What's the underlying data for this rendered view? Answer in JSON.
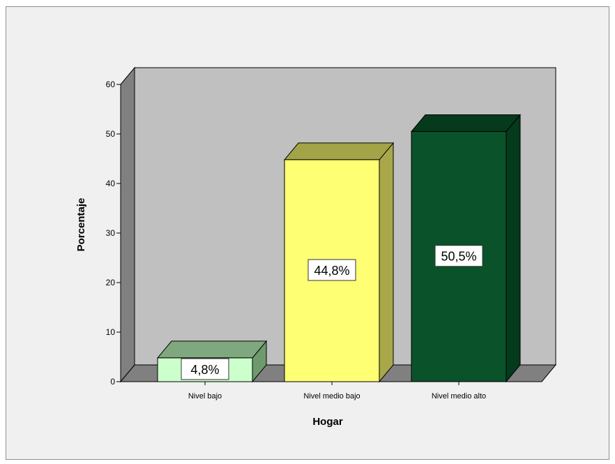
{
  "chart_data": {
    "type": "bar",
    "title": "",
    "xlabel": "Hogar",
    "ylabel": "Porcentaje",
    "categories": [
      "Nivel bajo",
      "Nivel medio bajo",
      "Nivel medio alto"
    ],
    "values": [
      4.8,
      44.8,
      50.5
    ],
    "data_labels": [
      "4,8%",
      "44,8%",
      "50,5%"
    ],
    "ylim": [
      0,
      60
    ],
    "yticks": [
      "0",
      "10",
      "20",
      "30",
      "40",
      "50",
      "60"
    ],
    "three_d": true,
    "grid": false,
    "legend": "none",
    "bar_colors": [
      {
        "front": "#ccffcc",
        "top": "#7fa87f",
        "side": "#6f9a6f"
      },
      {
        "front": "#ffff73",
        "top": "#a3a347",
        "side": "#a8a84a"
      },
      {
        "front": "#0a5229",
        "top": "#063a1c",
        "side": "#053a1c"
      }
    ],
    "colors": {
      "frame_background": "#f0f0f0",
      "plot_back_wall": "#c0c0c0",
      "plot_side_wall": "#808080",
      "plot_floor": "#808080"
    }
  }
}
